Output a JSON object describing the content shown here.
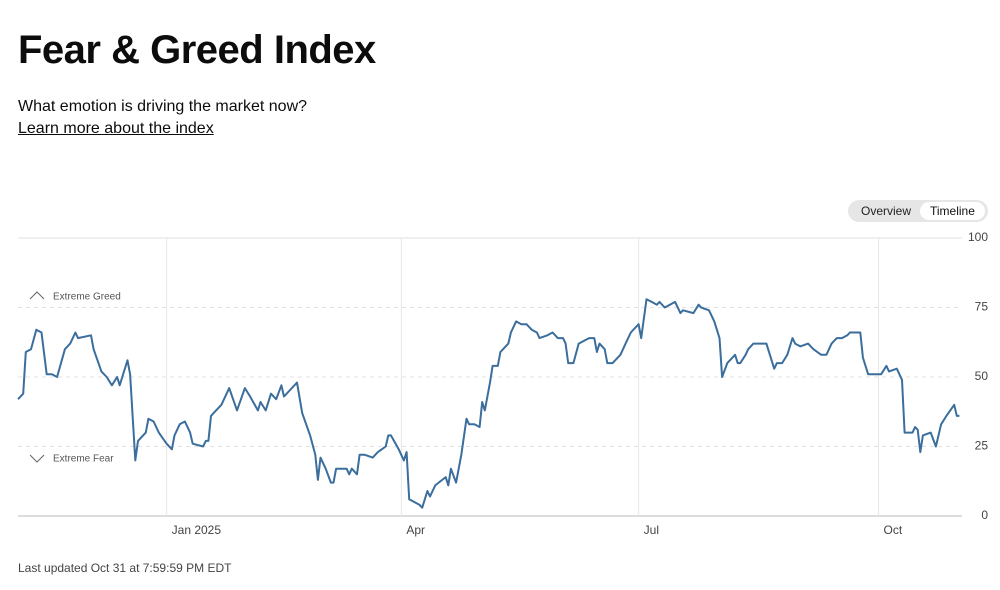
{
  "header": {
    "title": "Fear & Greed Index",
    "subtitle": "What emotion is driving the market now?",
    "link": "Learn more about the index"
  },
  "toggle": [
    "Overview",
    "Timeline"
  ],
  "footer": "Last updated Oct 31 at 7:59:59 PM EDT",
  "chart_data": {
    "type": "line",
    "annotations": [
      "Extreme Greed",
      "Extreme Fear"
    ],
    "xlim": [
      0,
      362
    ],
    "xticks": [
      {
        "value": 57,
        "label": "Jan 2025"
      },
      {
        "value": 147,
        "label": "Apr"
      },
      {
        "value": 238,
        "label": "Jul"
      },
      {
        "value": 330,
        "label": "Oct"
      }
    ],
    "ylim": [
      0,
      100
    ],
    "yticks": [
      0,
      25,
      50,
      75,
      100
    ],
    "grid": true,
    "series": [
      {
        "color": "#3b6e9c",
        "x": [
          0,
          2,
          3,
          5,
          7,
          9,
          11,
          13,
          15,
          18,
          20,
          22,
          23,
          28,
          29,
          32,
          34,
          36,
          38,
          39,
          42,
          43,
          45,
          46,
          49,
          50,
          52,
          54,
          57,
          59,
          60,
          62,
          64,
          66,
          67,
          71,
          72,
          73,
          74,
          75,
          78,
          81,
          84,
          87,
          89,
          92,
          93,
          95,
          97,
          99,
          101,
          102,
          107,
          109,
          112,
          114,
          115,
          116,
          118,
          120,
          121,
          122,
          126,
          127,
          128,
          130,
          131,
          133,
          136,
          138,
          141,
          142,
          143,
          146,
          148,
          149,
          150,
          154,
          155,
          157,
          158,
          160,
          164,
          165,
          166,
          168,
          170,
          172,
          173,
          175,
          177,
          178,
          179,
          181,
          182,
          184,
          185,
          188,
          189,
          191,
          193,
          195,
          197,
          199,
          200,
          203,
          205,
          207,
          209,
          210,
          211,
          213,
          215,
          219,
          221,
          222,
          223,
          225,
          226,
          228,
          231,
          233,
          235,
          238,
          239,
          241,
          243,
          245,
          246,
          248,
          250,
          252,
          254,
          255,
          259,
          261,
          262,
          265,
          267,
          269,
          270,
          272,
          275,
          276,
          277,
          279,
          280,
          282,
          287,
          290,
          291,
          293,
          295,
          297,
          298,
          300,
          303,
          305,
          308,
          310,
          312,
          314,
          316,
          318,
          319,
          323,
          324,
          326,
          329,
          331,
          333,
          334,
          337,
          339,
          340,
          343,
          344,
          345,
          346,
          347,
          350,
          352,
          354,
          356,
          359,
          360,
          361
        ],
        "values": [
          42,
          44,
          59,
          60,
          67,
          66,
          51,
          51,
          50,
          60,
          62,
          66,
          64,
          65,
          60,
          52,
          50,
          47,
          50,
          47,
          56,
          51,
          20,
          27,
          30,
          35,
          34,
          30,
          26,
          24,
          29,
          33,
          34,
          30,
          26,
          25,
          27,
          27,
          36,
          37,
          40,
          46,
          38,
          46,
          43,
          38,
          41,
          38,
          44,
          42,
          47,
          43,
          48,
          37,
          29,
          22,
          13,
          21,
          17,
          12,
          12,
          17,
          17,
          15,
          17,
          15,
          22,
          22,
          21,
          23,
          25,
          29,
          29,
          24,
          20,
          23,
          6,
          4,
          3,
          9,
          7,
          11,
          14,
          11,
          17,
          12,
          22,
          35,
          33,
          33,
          32,
          41,
          38,
          48,
          54,
          54,
          59,
          62,
          66,
          70,
          69,
          69,
          67,
          66,
          64,
          65,
          66,
          64,
          64,
          62,
          55,
          55,
          62,
          64,
          64,
          59,
          62,
          60,
          55,
          55,
          58,
          62,
          66,
          69,
          64,
          78,
          77,
          76,
          77,
          75,
          76,
          77,
          73,
          74,
          73,
          76,
          75,
          74,
          70,
          64,
          50,
          55,
          58,
          55,
          55,
          58,
          60,
          62,
          62,
          53,
          55,
          55,
          58,
          64,
          62,
          61,
          62,
          60,
          58,
          58,
          62,
          64,
          64,
          65,
          66,
          66,
          57,
          51,
          51,
          51,
          54,
          52,
          53,
          49,
          30,
          30,
          32,
          31,
          23,
          29,
          30,
          25,
          33,
          36,
          40,
          36,
          36
        ]
      }
    ]
  }
}
